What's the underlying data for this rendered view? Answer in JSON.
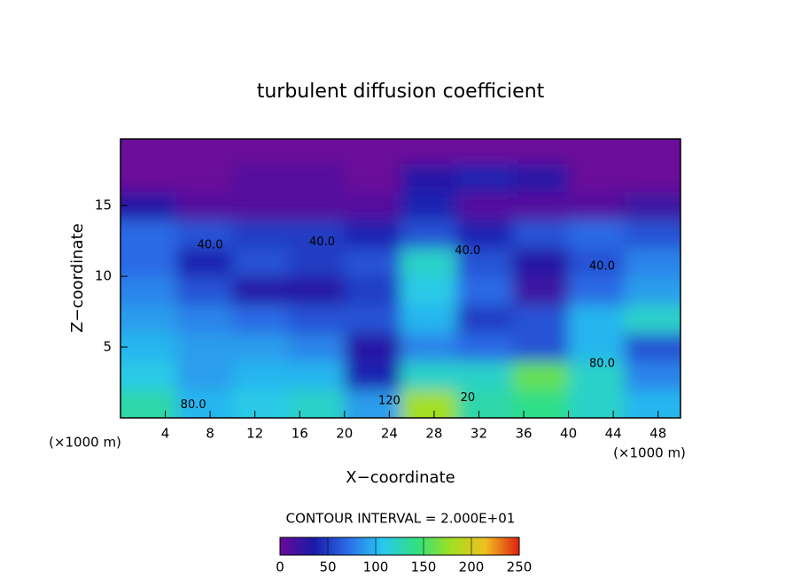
{
  "chart_data": {
    "type": "contour",
    "title": "turbulent diffusion coefficient",
    "x_label": "X−coordinate",
    "y_label": "Z−coordinate",
    "x_unit": "(×1000 m)",
    "y_unit": "(×1000 m)",
    "xlim": [
      0,
      50
    ],
    "ylim": [
      0,
      19.7
    ],
    "xticks": [
      4,
      8,
      12,
      16,
      20,
      24,
      28,
      32,
      36,
      40,
      44,
      48
    ],
    "yticks": [
      5,
      10,
      15
    ],
    "x": [
      2.5,
      7.5,
      12.5,
      17.5,
      22.5,
      27.5,
      32.5,
      37.5,
      42.5,
      47.5
    ],
    "y": [
      1,
      3,
      5,
      7,
      9,
      11,
      13,
      15,
      17,
      19
    ],
    "z": [
      [
        130,
        100,
        110,
        120,
        90,
        180,
        130,
        140,
        120,
        100
      ],
      [
        110,
        90,
        100,
        100,
        40,
        120,
        120,
        160,
        120,
        80
      ],
      [
        100,
        90,
        90,
        80,
        30,
        80,
        70,
        60,
        100,
        60
      ],
      [
        90,
        80,
        70,
        60,
        60,
        100,
        50,
        60,
        100,
        120
      ],
      [
        80,
        60,
        30,
        30,
        50,
        110,
        70,
        20,
        70,
        90
      ],
      [
        70,
        40,
        60,
        50,
        60,
        120,
        60,
        30,
        60,
        80
      ],
      [
        70,
        60,
        50,
        50,
        40,
        60,
        40,
        60,
        70,
        60
      ],
      [
        30,
        10,
        10,
        10,
        10,
        40,
        10,
        10,
        10,
        20
      ],
      [
        0,
        0,
        10,
        10,
        0,
        30,
        40,
        30,
        0,
        0
      ],
      [
        0,
        0,
        0,
        0,
        0,
        0,
        0,
        0,
        0,
        0
      ]
    ],
    "colormap": [
      "#6a0a9a",
      "#1a1aa8",
      "#2a6ee8",
      "#28c8f0",
      "#30e080",
      "#a0e020",
      "#f0c020",
      "#e02010"
    ],
    "contour_interval_label": "CONTOUR INTERVAL = 2.000E+01",
    "contour_labels": [
      "40.0",
      "40.0",
      "40.0",
      "40.0",
      "80.0",
      "80.0",
      "120",
      "20"
    ],
    "clim": [
      0,
      250
    ],
    "cticks": [
      0,
      50,
      100,
      150,
      200,
      250
    ]
  }
}
